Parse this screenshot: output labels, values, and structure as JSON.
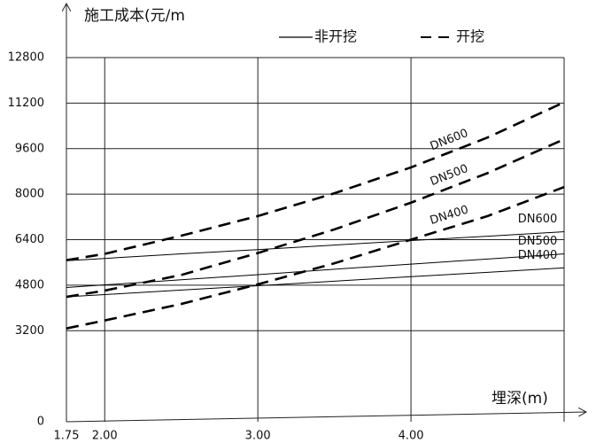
{
  "chart_data": {
    "type": "line",
    "y_axis_label": "施工成本(元/m",
    "x_axis_label": "埋深(m)",
    "legend": [
      {
        "name": "非开挖",
        "style": "solid"
      },
      {
        "name": "开挖",
        "style": "dashed"
      }
    ],
    "x": [
      1.75,
      2,
      2.5,
      3,
      3.5,
      4,
      4.5,
      5
    ],
    "xlim": [
      1.75,
      5
    ],
    "xticks": [
      1.75,
      {
        "value": 2,
        "label": "2.00"
      },
      {
        "value": 3,
        "label": "3.00"
      },
      {
        "value": 4,
        "label": "4.00"
      }
    ],
    "ylim": [
      0,
      12800
    ],
    "yticks": [
      0,
      3200,
      4800,
      6400,
      8000,
      9600,
      11200,
      12800
    ],
    "grid": true,
    "series": [
      {
        "name": "DN600",
        "style": "dashed",
        "color": "#000000",
        "values": [
          5680,
          5900,
          6540,
          7230,
          8030,
          8940,
          9990,
          11230
        ]
      },
      {
        "name": "DN500",
        "style": "dashed",
        "color": "#000000",
        "values": [
          4390,
          4610,
          5160,
          5930,
          6760,
          7700,
          8740,
          9930
        ]
      },
      {
        "name": "DN400",
        "style": "dashed",
        "color": "#000000",
        "values": [
          3280,
          3560,
          4140,
          4830,
          5570,
          6400,
          7230,
          8250
        ]
      },
      {
        "name": "DN600",
        "style": "solid",
        "color": "#000000",
        "values": [
          5660,
          5740,
          5900,
          6050,
          6210,
          6370,
          6520,
          6680
        ]
      },
      {
        "name": "DN500",
        "style": "solid",
        "color": "#000000",
        "values": [
          4720,
          4810,
          4990,
          5170,
          5360,
          5540,
          5720,
          5900
        ]
      },
      {
        "name": "DN400",
        "style": "solid",
        "color": "#000000",
        "values": [
          4390,
          4470,
          4630,
          4780,
          4940,
          5100,
          5250,
          5410
        ]
      }
    ]
  }
}
